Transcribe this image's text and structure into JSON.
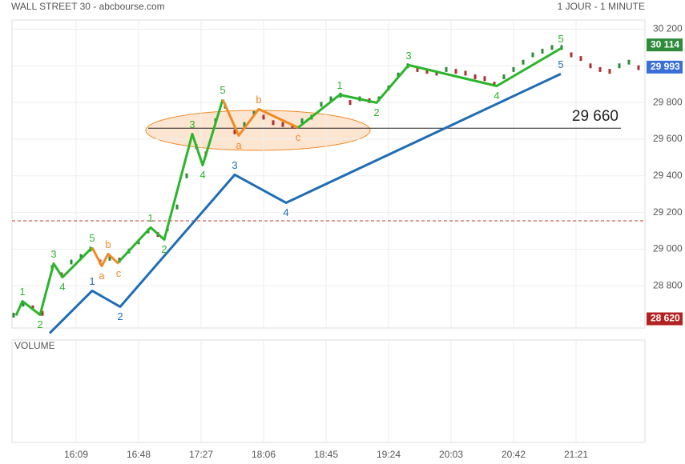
{
  "chart_data": {
    "type": "elliott",
    "title": "WALL STREET 30 - abcbourse.com",
    "subtitle": "1 JOUR - 1 MINUTE",
    "volume_label": "VOLUME",
    "xlim": [
      929,
      1324
    ],
    "xticks": [
      {
        "value": 969,
        "label": "16:09"
      },
      {
        "value": 1008,
        "label": "16:48"
      },
      {
        "value": 1047,
        "label": "17:27"
      },
      {
        "value": 1086,
        "label": "18:06"
      },
      {
        "value": 1125,
        "label": "18:45"
      },
      {
        "value": 1164,
        "label": "19:24"
      },
      {
        "value": 1203,
        "label": "20:03"
      },
      {
        "value": 1242,
        "label": "20:42"
      },
      {
        "value": 1281,
        "label": "21:21"
      }
    ],
    "ylim": [
      28570,
      30250
    ],
    "yticks": [
      {
        "value": 28800,
        "label": "28 800"
      },
      {
        "value": 29000,
        "label": "29 000"
      },
      {
        "value": 29200,
        "label": "29 200"
      },
      {
        "value": 29400,
        "label": "29 400"
      },
      {
        "value": 29600,
        "label": "29 600"
      },
      {
        "value": 29800,
        "label": "29 800"
      },
      {
        "value": 30000,
        "label": "30 000"
      },
      {
        "value": 30200,
        "label": "30 200"
      }
    ],
    "grid": true,
    "price": {
      "up_color": "#2e8b3a",
      "down_color": "#b03030",
      "x": [
        930,
        936,
        942,
        948,
        954,
        960,
        966,
        972,
        978,
        984,
        990,
        996,
        1002,
        1008,
        1014,
        1020,
        1026,
        1032,
        1038,
        1044,
        1050,
        1056,
        1062,
        1068,
        1074,
        1080,
        1086,
        1092,
        1098,
        1104,
        1110,
        1116,
        1122,
        1128,
        1134,
        1140,
        1146,
        1152,
        1158,
        1164,
        1170,
        1176,
        1182,
        1188,
        1194,
        1200,
        1206,
        1212,
        1218,
        1224,
        1230,
        1236,
        1242,
        1248,
        1254,
        1260,
        1266,
        1272,
        1278,
        1284,
        1290,
        1296,
        1302,
        1308,
        1314,
        1320
      ],
      "values": [
        28640,
        28700,
        28680,
        28650,
        28900,
        28860,
        28930,
        28960,
        29000,
        28930,
        28950,
        28940,
        28990,
        29040,
        29100,
        29080,
        29110,
        29230,
        29400,
        29560,
        29520,
        29700,
        29780,
        29640,
        29680,
        29740,
        29720,
        29690,
        29680,
        29670,
        29700,
        29720,
        29790,
        29820,
        29840,
        29800,
        29820,
        29810,
        29820,
        29880,
        29950,
        30000,
        29980,
        29970,
        29960,
        29980,
        29970,
        29960,
        29940,
        29930,
        29900,
        29940,
        29980,
        30020,
        30060,
        30080,
        30100,
        30100,
        30060,
        30040,
        30000,
        29980,
        29970,
        30000,
        30020,
        29990
      ]
    },
    "waves": [
      {
        "color": "#2bb52b",
        "x": [
          931.5,
          935.5,
          946.5,
          955,
          960.5,
          979
        ],
        "values": [
          28638,
          28716,
          28642,
          28921,
          28847,
          29009
        ],
        "labels": [
          null,
          "1",
          "2",
          "3",
          "4",
          "5"
        ]
      },
      {
        "color": "#f08a24",
        "x": [
          979,
          985,
          989,
          995.5
        ],
        "values": [
          29009,
          28908,
          28974,
          28921
        ],
        "labels": [
          null,
          "a",
          "b",
          "c"
        ]
      },
      {
        "color": "#2bb52b",
        "x": [
          995.5,
          1015.5,
          1024,
          1041.5,
          1048,
          1060.5
        ],
        "values": [
          28930,
          29118,
          29052,
          29628,
          29458,
          29816
        ],
        "labels": [
          null,
          "1",
          "2",
          "3",
          "4",
          "5"
        ]
      },
      {
        "color": "#f08a24",
        "x": [
          1060.5,
          1070.5,
          1083,
          1107.5
        ],
        "values": [
          29816,
          29620,
          29764,
          29663
        ],
        "labels": [
          null,
          "a",
          "b",
          "c"
        ]
      },
      {
        "color": "#2bb52b",
        "x": [
          1107.5,
          1133.5,
          1156.5,
          1176.5,
          1231.5,
          1271.5
        ],
        "values": [
          29663,
          29842,
          29799,
          30004,
          29890,
          30095
        ],
        "labels": [
          null,
          "1",
          "2",
          "3",
          "4",
          "5"
        ]
      },
      {
        "color": "#1f6db5",
        "x": [
          952.5,
          979,
          996.5,
          1068,
          1100,
          1271.5
        ],
        "values": [
          28542,
          28773,
          28686,
          29406,
          29253,
          29956
        ],
        "labels": [
          null,
          "1",
          "2",
          "3",
          "4",
          "5"
        ]
      }
    ],
    "level_line": {
      "value": 29660,
      "label": "29 660"
    },
    "reference_line": {
      "value": 29155,
      "color": "#c0392b"
    },
    "price_tags": [
      {
        "value": 30114,
        "label": "30 114",
        "color": "#2e8b3a"
      },
      {
        "value": 29993,
        "label": "29 993",
        "color": "#3a6fd8"
      },
      {
        "value": 28620,
        "label": "28 620",
        "color": "#b22222"
      }
    ]
  }
}
